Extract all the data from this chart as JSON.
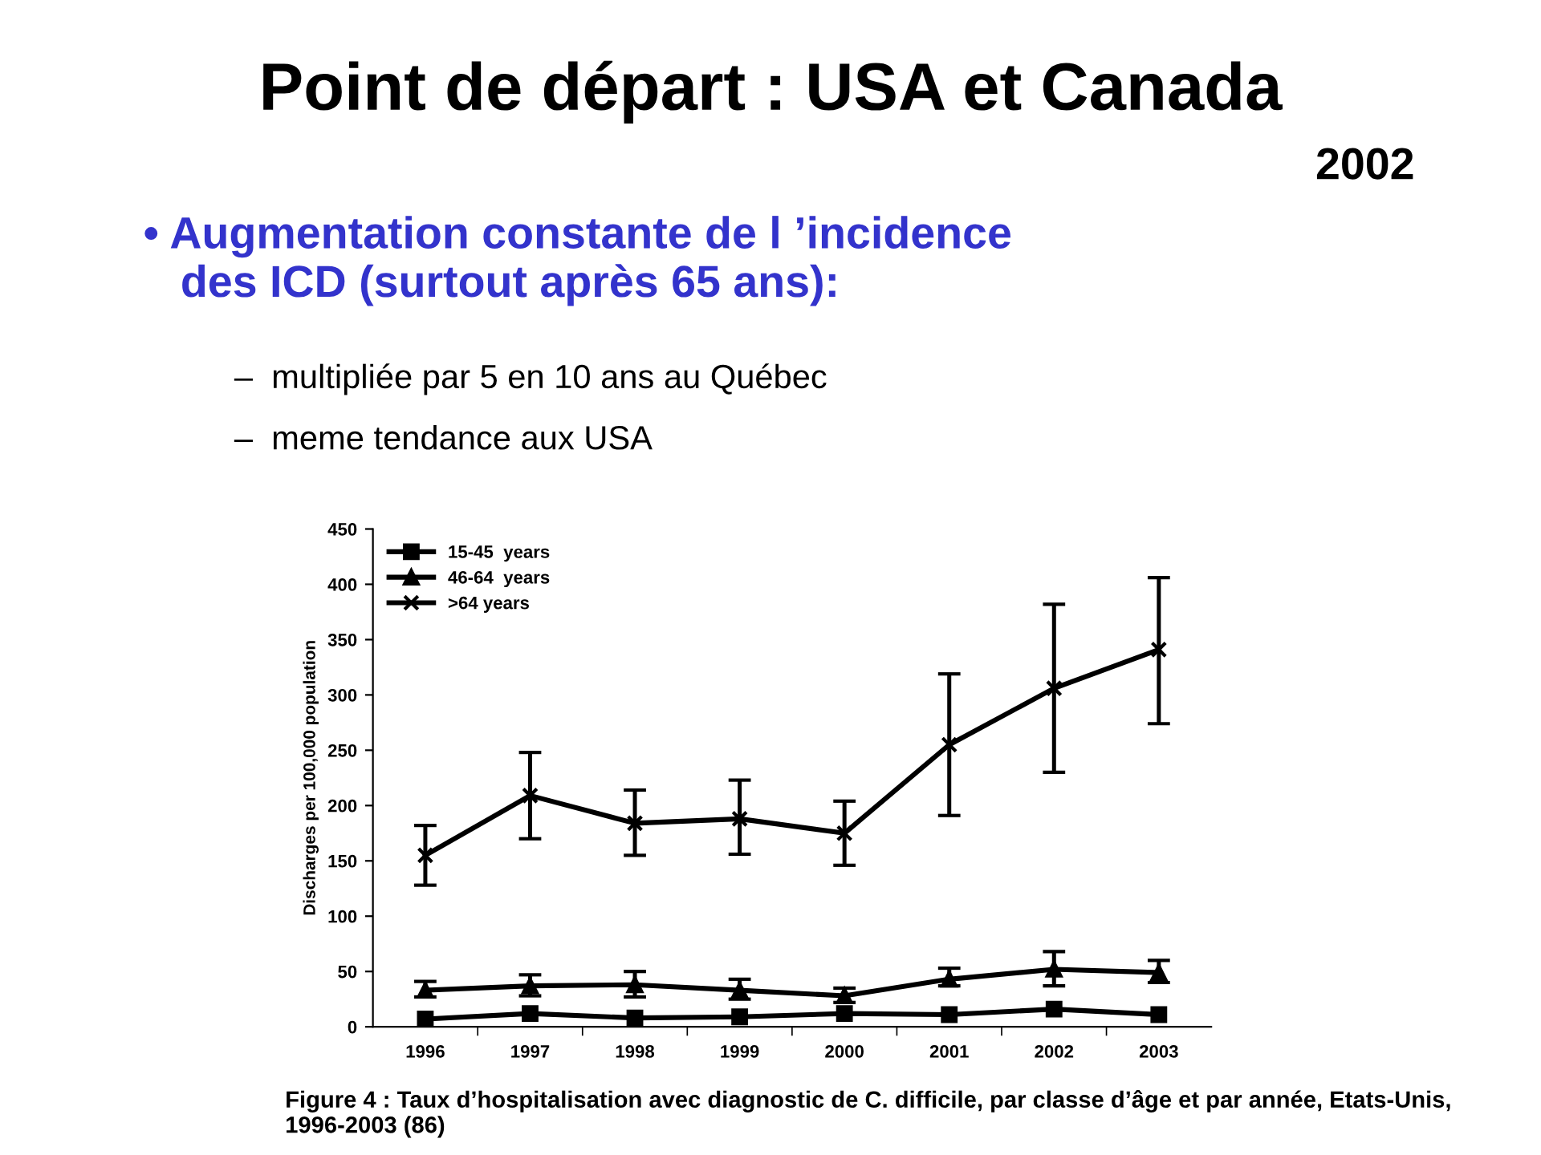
{
  "chart_data": {
    "type": "line",
    "title": "Point de départ : USA et Canada",
    "subtitle": "2002",
    "annotations": [
      "• Augmentation constante de l ’incidence\n   des ICD (surtout après 65 ans):",
      "–  multipliée par 5 en 10 ans au Québec",
      "–  meme tendance aux USA",
      "Figure 4 : Taux d’hospitalisation avec diagnostic de C. difficile, par classe d’âge et par année, Etats-Unis,\n1996-2003 (86)"
    ],
    "ylabel": "Discharges per 100,000 population",
    "categories": [
      "1996",
      "1997",
      "1998",
      "1999",
      "2000",
      "2001",
      "2002",
      "2003"
    ],
    "series": [
      {
        "name": "15-45  years",
        "color": "#000000",
        "marker": "square",
        "values": [
          7,
          12,
          8,
          9,
          12,
          11,
          16,
          11
        ]
      },
      {
        "name": "46-64  years",
        "color": "#000000",
        "marker": "triangle",
        "values": [
          33,
          37,
          38,
          33,
          28,
          43,
          52,
          49
        ],
        "errors": [
          [
            27,
            41
          ],
          [
            28,
            47
          ],
          [
            27,
            50
          ],
          [
            25,
            43
          ],
          [
            22,
            35
          ],
          [
            37,
            53
          ],
          [
            37,
            68
          ],
          [
            40,
            60
          ]
        ]
      },
      {
        "name": ">64 years",
        "color": "#000000",
        "marker": "cross",
        "values": [
          155,
          209,
          184,
          188,
          175,
          255,
          306,
          341
        ],
        "errors": [
          [
            128,
            182
          ],
          [
            170,
            248
          ],
          [
            155,
            214
          ],
          [
            156,
            223
          ],
          [
            146,
            204
          ],
          [
            191,
            319
          ],
          [
            230,
            382
          ],
          [
            274,
            406
          ]
        ]
      }
    ],
    "ylim": [
      0,
      450
    ],
    "yticks": [
      0,
      50,
      100,
      150,
      200,
      250,
      300,
      350,
      400,
      450
    ],
    "grid": false,
    "legend": "top left",
    "line_style": "solid"
  }
}
